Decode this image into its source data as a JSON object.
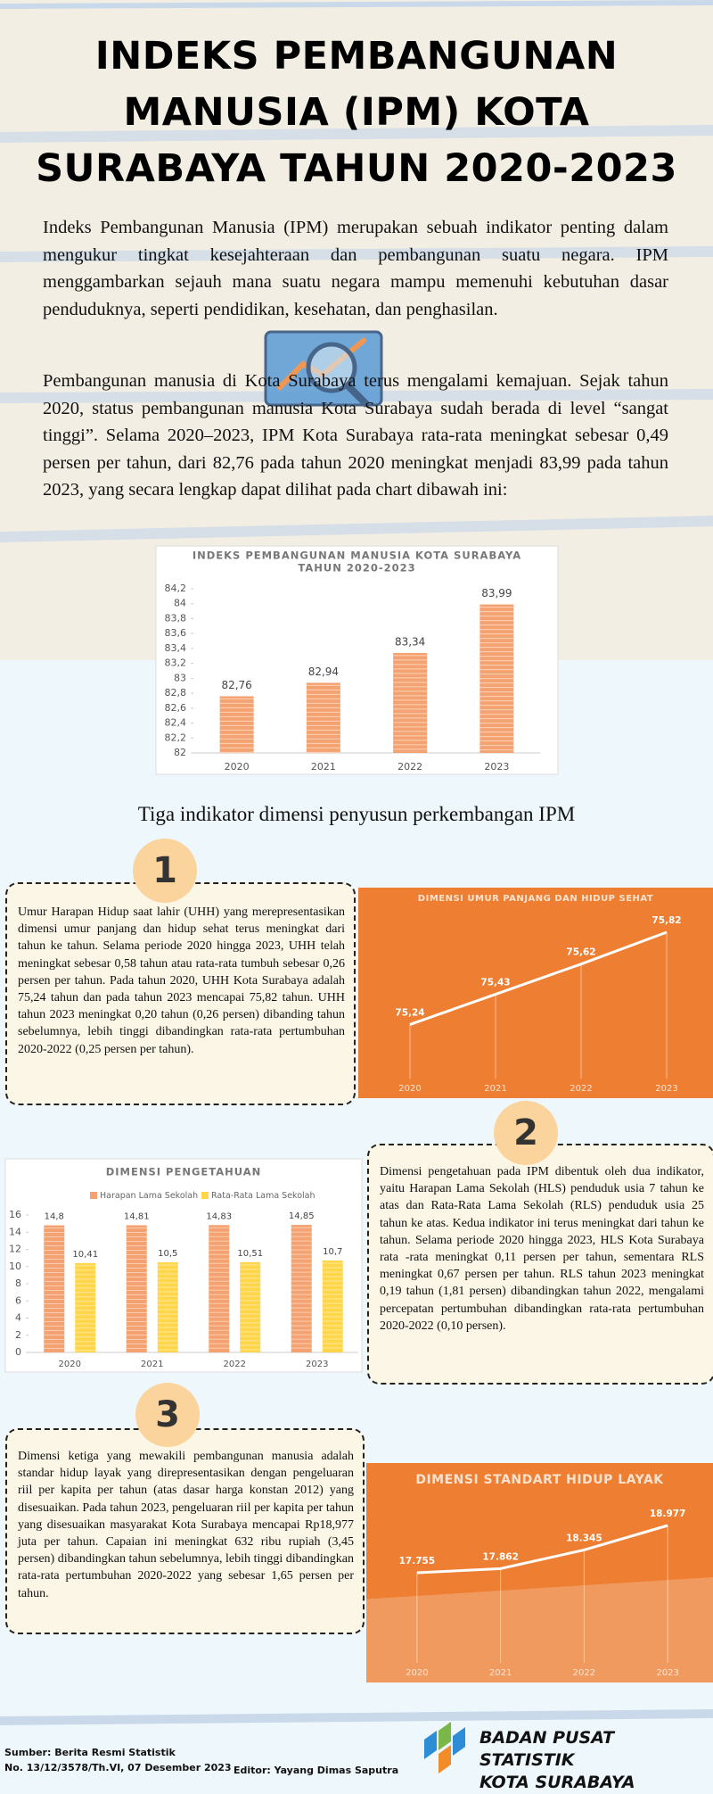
{
  "header": {
    "title_lines": [
      "INDEKS PEMBANGUNAN",
      "MANUSIA (IPM) KOTA",
      "SURABAYA TAHUN 2020-2023"
    ]
  },
  "intro": {
    "paragraphs": [
      "Indeks Pembangunan Manusia (IPM) merupakan sebuah indikator penting dalam mengukur tingkat kesejahteraan dan pembangunan suatu negara. IPM menggambarkan sejauh mana suatu negara mampu memenuhi kebutuhan dasar penduduknya, seperti pendidikan, kesehatan, dan penghasilan.",
      "Pembangunan manusia di Kota Surabaya terus mengalami kemajuan. Sejak tahun 2020, status pembangunan manusia Kota Surabaya sudah berada di level “sangat tinggi”. Selama 2020–2023, IPM Kota Surabaya rata-rata meningkat sebesar 0,49 persen per tahun, dari 82,76 pada tahun 2020 meningkat menjadi 83,99 pada tahun 2023, yang secara lengkap dapat dilihat pada chart dibawah ini:"
    ]
  },
  "section_heading": "Tiga indikator dimensi penyusun perkembangan IPM",
  "dimensions": [
    {
      "number": "1",
      "text": "Umur Harapan Hidup saat lahir (UHH) yang merepresentasikan dimensi umur panjang dan hidup sehat terus meningkat dari tahun ke tahun. Selama periode 2020 hingga 2023, UHH telah meningkat sebesar 0,58 tahun atau rata-rata tumbuh sebesar 0,26 persen per tahun. Pada tahun 2020, UHH Kota Surabaya adalah 75,24 tahun dan pada tahun 2023 mencapai 75,82 tahun. UHH tahun 2023 meningkat 0,20 tahun (0,26 persen) dibanding tahun sebelumnya, lebih tinggi dibandingkan rata-rata pertumbuhan 2020-2022 (0,25 persen per tahun)."
    },
    {
      "number": "2",
      "text": "Dimensi pengetahuan pada IPM dibentuk oleh dua indikator, yaitu Harapan Lama Sekolah (HLS) penduduk usia 7 tahun ke atas dan Rata-Rata Lama Sekolah (RLS) penduduk usia 25 tahun ke atas. Kedua indikator ini terus meningkat dari tahun ke tahun. Selama periode 2020 hingga 2023, HLS Kota Surabaya rata -rata meningkat 0,11 persen per tahun, sementara RLS meningkat 0,67 persen per tahun. RLS tahun 2023 meningkat 0,19 tahun (1,81 persen) dibandingkan tahun 2022, mengalami percepatan pertumbuhan dibandingkan rata-rata pertumbuhan 2020-2022 (0,10 persen)."
    },
    {
      "number": "3",
      "text": "Dimensi ketiga yang mewakili pembangunan manusia adalah standar hidup layak yang direpresentasikan dengan pengeluaran riil per kapita per tahun (atas dasar harga konstan 2012) yang disesuaikan. Pada tahun 2023, pengeluaran riil per kapita per tahun yang disesuaikan masyarakat Kota Surabaya mencapai Rp18,977 juta per tahun. Capaian ini meningkat 632 ribu rupiah (3,45 persen) dibandingkan tahun sebelumnya, lebih tinggi dibandingkan rata-rata pertumbuhan 2020-2022 yang sebesar 1,65 persen per tahun."
    }
  ],
  "chart_data": [
    {
      "type": "bar",
      "title_lines": [
        "INDEKS PEMBANGUNAN MANUSIA KOTA SURABAYA",
        "TAHUN 2020-2023"
      ],
      "categories": [
        "2020",
        "2021",
        "2022",
        "2023"
      ],
      "values": [
        82.76,
        82.94,
        83.34,
        83.99
      ],
      "value_labels": [
        "82,76",
        "82,94",
        "83,34",
        "83,99"
      ],
      "color": "#f4a271",
      "ylim": [
        82,
        84.2
      ],
      "yticks": [
        82,
        {
          "value": 82.2,
          "label": "82,2"
        },
        {
          "value": 82.4,
          "label": "82,4"
        },
        {
          "value": 82.6,
          "label": "82,6"
        },
        {
          "value": 82.8,
          "label": "82,8"
        },
        83,
        {
          "value": 83.2,
          "label": "83,2"
        },
        {
          "value": 83.4,
          "label": "83,4"
        },
        {
          "value": 83.6,
          "label": "83,6"
        },
        {
          "value": 83.8,
          "label": "83,8"
        },
        84,
        {
          "value": 84.2,
          "label": "84,2"
        }
      ]
    },
    {
      "type": "line",
      "title": "DIMENSI UMUR PANJANG DAN HIDUP SEHAT",
      "categories": [
        "2020",
        "2021",
        "2022",
        "2023"
      ],
      "values": [
        75.24,
        75.43,
        75.62,
        75.82
      ],
      "value_labels": [
        "75,24",
        "75,43",
        "75,62",
        "75,82"
      ],
      "color": "#ffffff",
      "background": "#ee7e32"
    },
    {
      "type": "grouped_bar",
      "title": "DIMENSI PENGETAHUAN",
      "categories": [
        "2020",
        "2021",
        "2022",
        "2023"
      ],
      "series": [
        {
          "name": "Harapan Lama Sekolah",
          "color": "#f4a271",
          "values": [
            14.8,
            14.81,
            14.83,
            14.85
          ],
          "value_labels": [
            "14,8",
            "14,81",
            "14,83",
            "14,85"
          ]
        },
        {
          "name": "Rata-Rata Lama Sekolah",
          "color": "#ffd54a",
          "values": [
            10.41,
            10.5,
            10.51,
            10.7
          ],
          "value_labels": [
            "10,41",
            "10,5",
            "10,51",
            "10,7"
          ]
        }
      ],
      "ylim": [
        0,
        16
      ],
      "yticks": [
        0,
        2,
        4,
        6,
        8,
        10,
        12,
        14,
        16
      ]
    },
    {
      "type": "line",
      "title": "DIMENSI STANDART HIDUP LAYAK",
      "categories": [
        "2020",
        "2021",
        "2022",
        "2023"
      ],
      "values": [
        17.755,
        17.862,
        18.345,
        18.977
      ],
      "color": "#ffffff",
      "background": "#ee7e32"
    }
  ],
  "footer": {
    "source_lines": [
      "Sumber: Berita Resmi Statistik",
      "No. 13/12/3578/Th.VI, 07 Desember 2023"
    ],
    "editor": "Editor: Yayang Dimas Saputra",
    "agency_lines": [
      "BADAN PUSAT STATISTIK",
      "KOTA SURABAYA"
    ]
  }
}
